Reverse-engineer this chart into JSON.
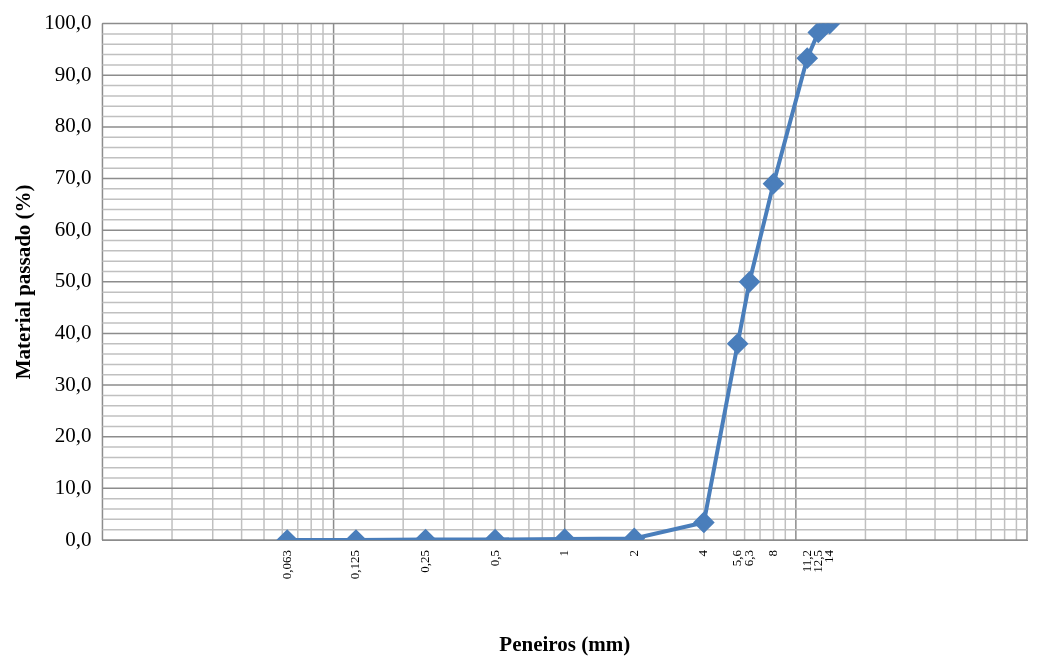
{
  "chart_data": {
    "type": "line",
    "xlabel": "Peneiros (mm)",
    "ylabel": "Material passado (%)",
    "x": [
      0.063,
      0.125,
      0.25,
      0.5,
      1,
      2,
      4,
      5.6,
      6.3,
      8,
      11.2,
      12.5,
      14
    ],
    "series": [
      {
        "color": "#4a7ebb",
        "values": [
          0,
          0,
          0.1,
          0.1,
          0.2,
          0.3,
          3.4,
          38,
          50,
          69,
          93.3,
          98.3,
          100
        ]
      }
    ],
    "log": "x",
    "xlim": [
      0.01,
      100
    ],
    "xticks": [
      {
        "value": 0.063,
        "label": "0,063"
      },
      {
        "value": 0.125,
        "label": "0,125"
      },
      {
        "value": 0.25,
        "label": "0,25"
      },
      {
        "value": 0.5,
        "label": "0,5"
      },
      {
        "value": 1,
        "label": "1"
      },
      {
        "value": 2,
        "label": "2"
      },
      {
        "value": 4,
        "label": "4"
      },
      {
        "value": 5.6,
        "label": "5,6"
      },
      {
        "value": 6.3,
        "label": "6,3"
      },
      {
        "value": 8,
        "label": "8"
      },
      {
        "value": 11.2,
        "label": "11,2"
      },
      {
        "value": 12.5,
        "label": "12,5"
      },
      {
        "value": 14,
        "label": "14"
      }
    ],
    "ylim": [
      0,
      100
    ],
    "yticks": [
      {
        "value": 0,
        "label": "0,0"
      },
      {
        "value": 10,
        "label": "10,0"
      },
      {
        "value": 20,
        "label": "20,0"
      },
      {
        "value": 30,
        "label": "30,0"
      },
      {
        "value": 40,
        "label": "40,0"
      },
      {
        "value": 50,
        "label": "50,0"
      },
      {
        "value": 60,
        "label": "60,0"
      },
      {
        "value": 70,
        "label": "70,0"
      },
      {
        "value": 80,
        "label": "80,0"
      },
      {
        "value": 90,
        "label": "90,0"
      },
      {
        "value": 100,
        "label": "100,0"
      }
    ],
    "grid": true,
    "legend": false,
    "marker": "diamond",
    "line_style": "solid"
  }
}
